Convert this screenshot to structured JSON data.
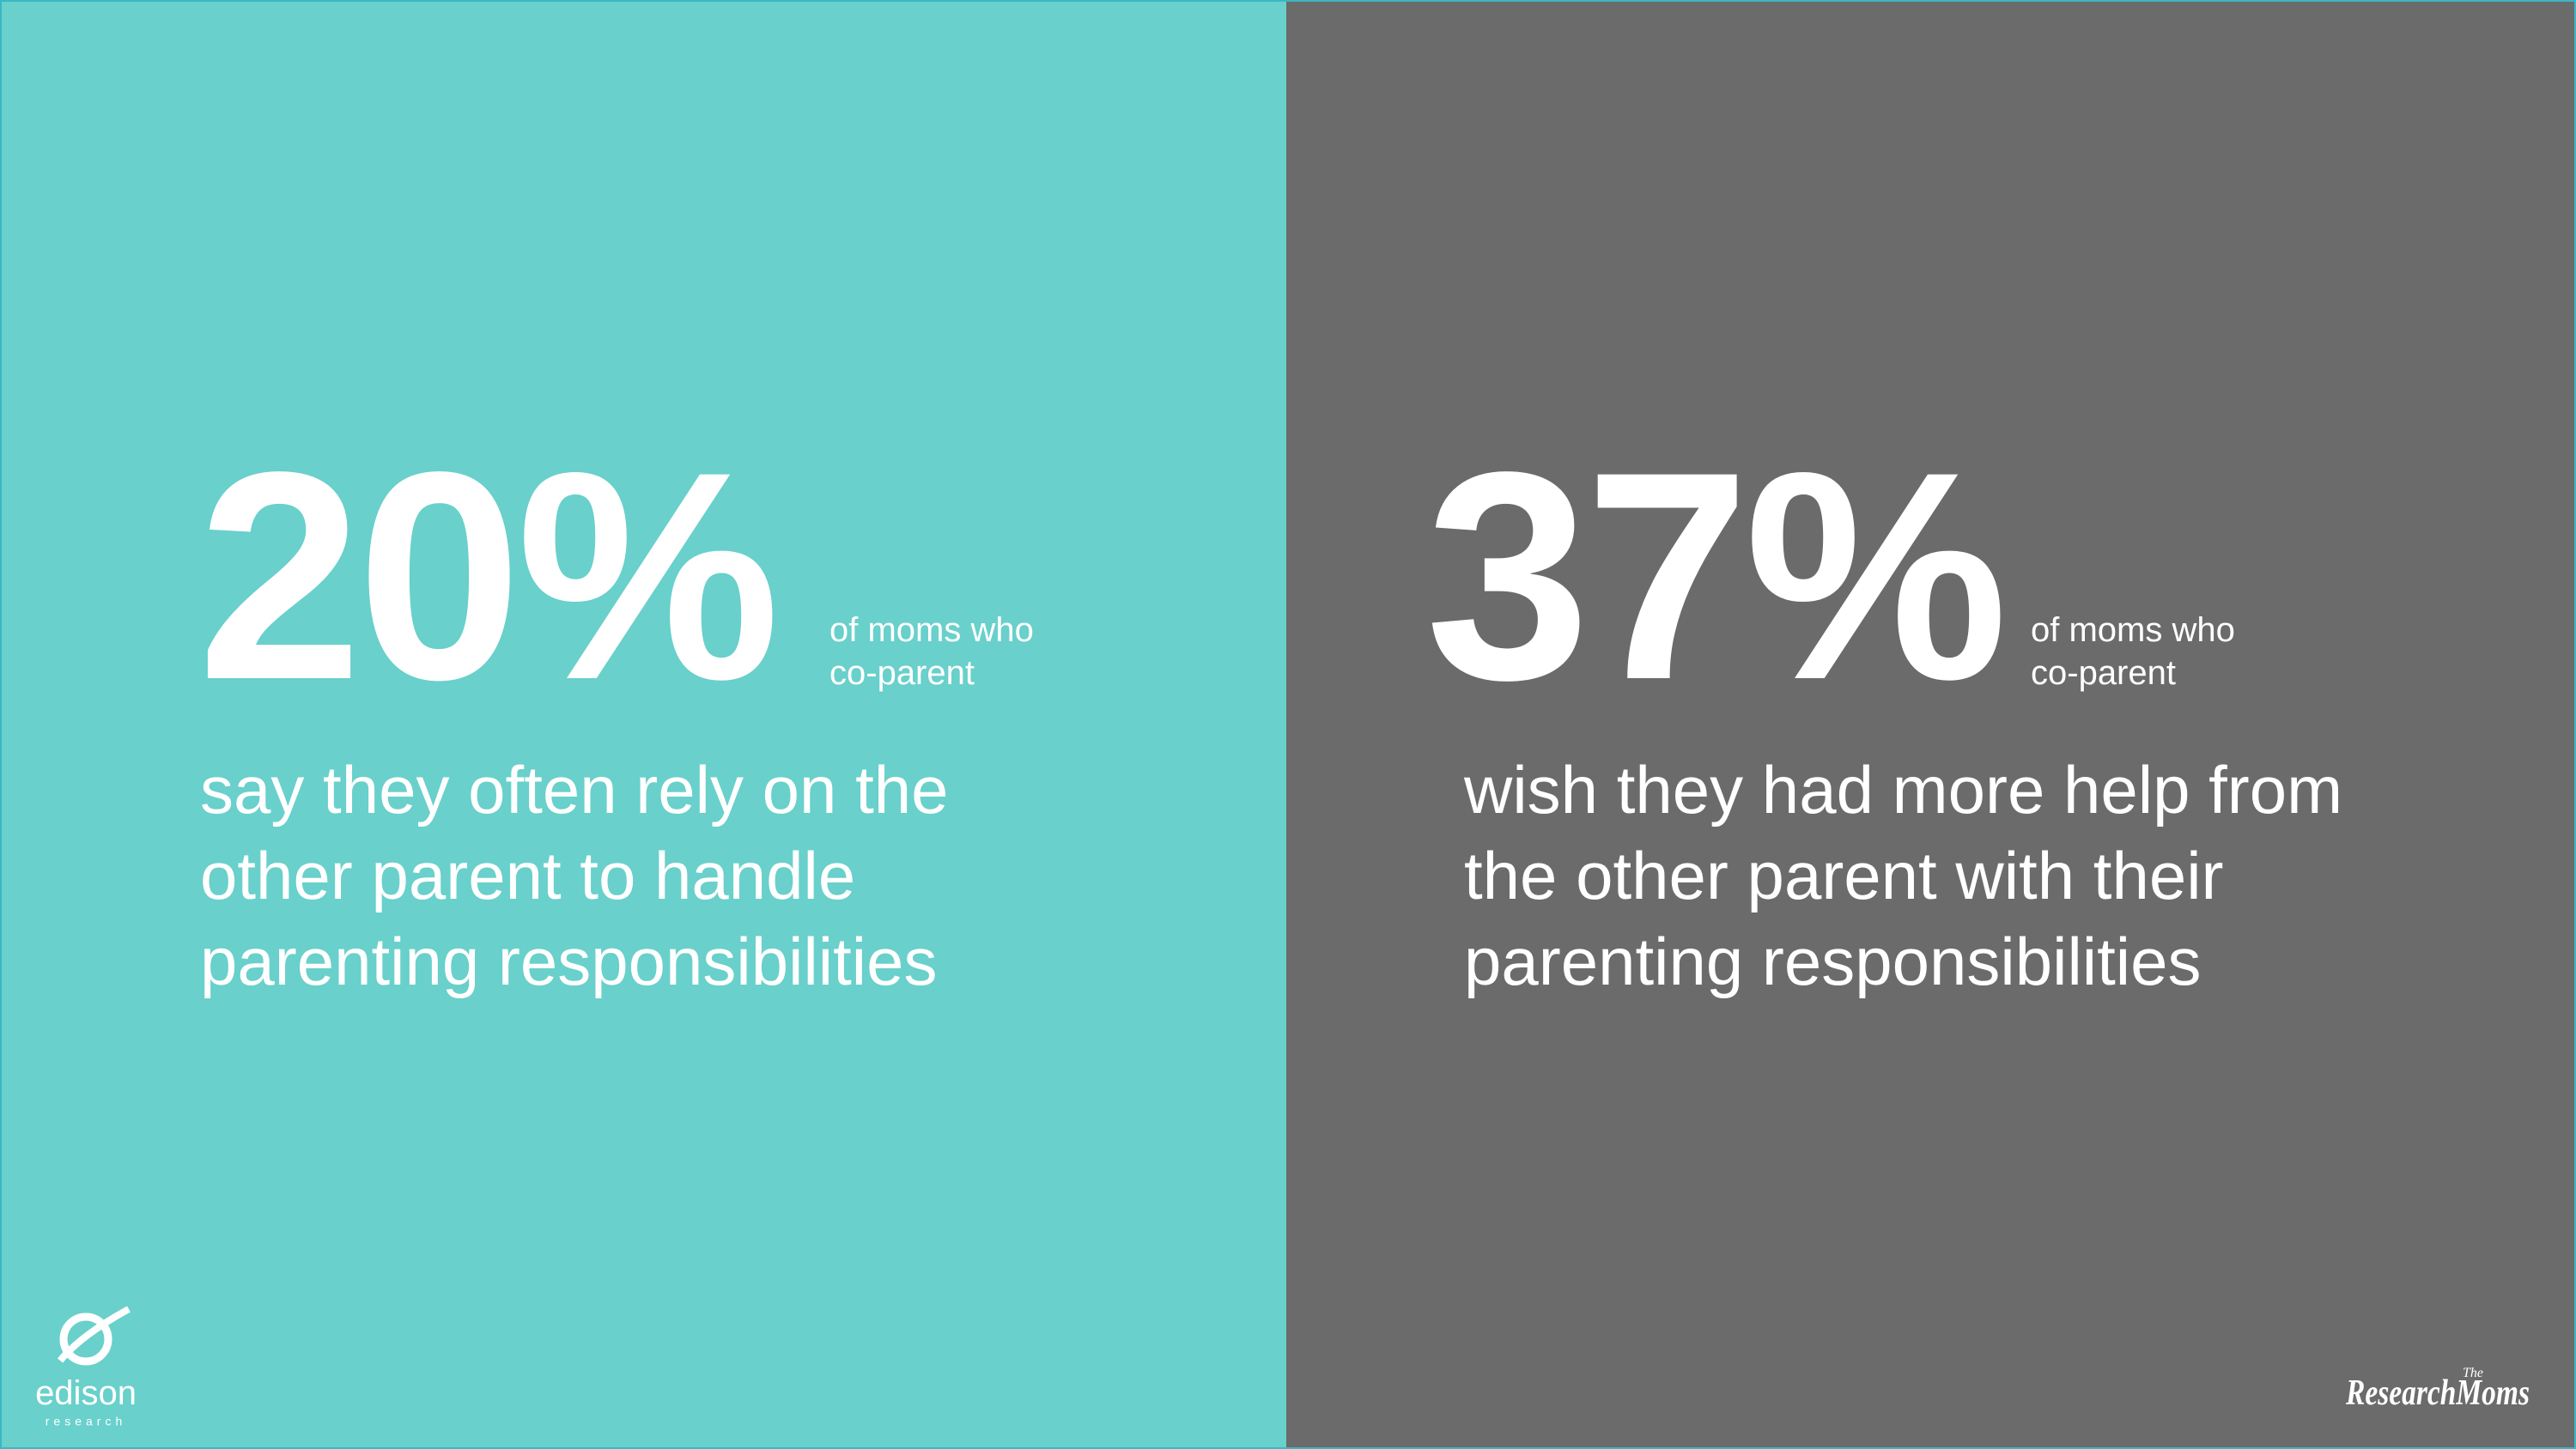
{
  "panels": [
    {
      "stat": "20%",
      "qualifier": [
        "of moms who",
        "co-parent"
      ],
      "description": [
        "say they often rely on the",
        "other parent to handle",
        "parenting responsibilities"
      ]
    },
    {
      "stat": "37%",
      "qualifier": [
        "of moms who",
        "co-parent"
      ],
      "description": [
        "wish they had more help from",
        "the other parent with their",
        "parenting responsibilities"
      ]
    }
  ],
  "logos": {
    "edison": {
      "name": "edison",
      "sub": "research"
    },
    "research_moms": {
      "the": "The",
      "name": "ResearchMoms"
    }
  }
}
